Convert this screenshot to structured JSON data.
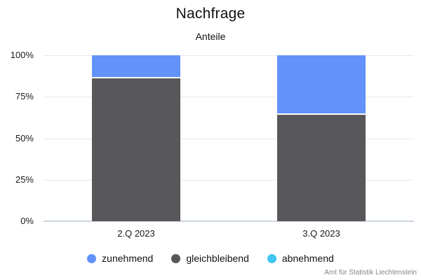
{
  "title": "Nachfrage",
  "subtitle": "Anteile",
  "source": "Amt für Statistik Liechtenstein",
  "chart_data": {
    "type": "bar",
    "stacked": true,
    "orientation": "vertical",
    "title": "Nachfrage",
    "subtitle": "Anteile",
    "categories": [
      "2.Q 2023",
      "3.Q 2023"
    ],
    "series": [
      {
        "name": "zunehmend",
        "color": "#6292fa",
        "values": [
          14,
          36
        ]
      },
      {
        "name": "gleichbleibend",
        "color": "#58585a",
        "values": [
          86,
          64
        ]
      },
      {
        "name": "abnehmend",
        "color": "#3fc6f1",
        "values": [
          0,
          0
        ]
      }
    ],
    "ylabel": "",
    "xlabel": "",
    "ylim": [
      0,
      100
    ],
    "yticks": [
      {
        "label": "0%",
        "value": 0
      },
      {
        "label": "25%",
        "value": 25
      },
      {
        "label": "50%",
        "value": 50
      },
      {
        "label": "75%",
        "value": 75
      },
      {
        "label": "100%",
        "value": 100
      }
    ],
    "grid": true,
    "legend_position": "bottom",
    "source": "Amt für Statistik Liechtenstein",
    "colors": {
      "gridline": "#e8e8e8",
      "axis_baseline": "#ccd5e1",
      "text": "#111111",
      "source_text": "#858585"
    }
  }
}
